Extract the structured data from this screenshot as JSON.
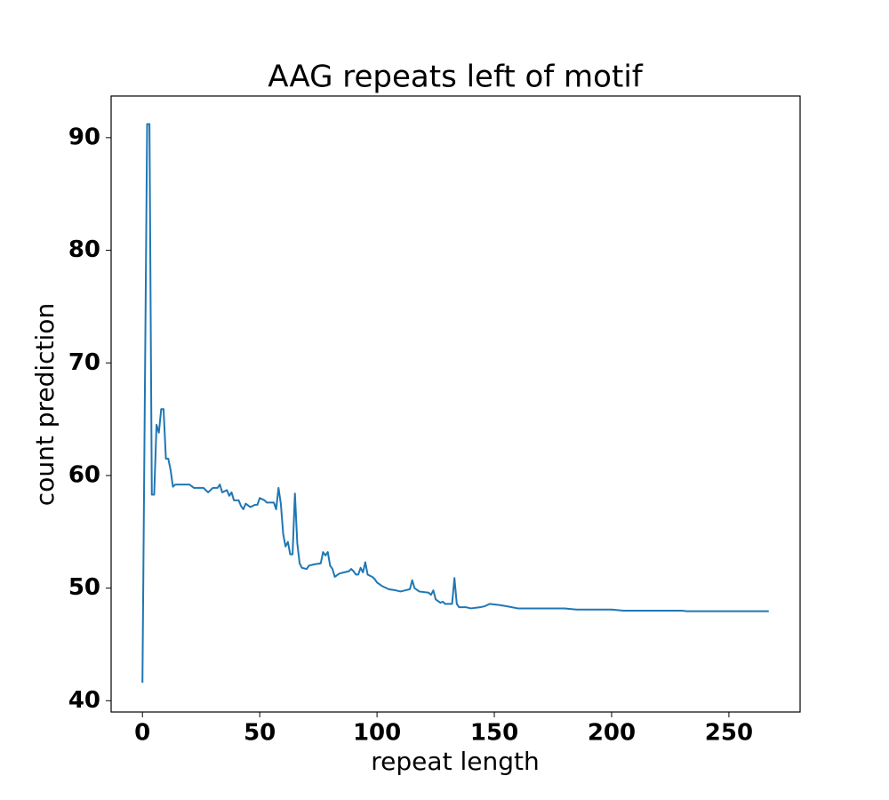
{
  "chart_data": {
    "type": "line",
    "title": "AAG repeats left of motif",
    "x_label": "repeat length",
    "y_label": "count prediction",
    "x": [
      0,
      2,
      3,
      4,
      5,
      6,
      7,
      8,
      9,
      10,
      11,
      12,
      13,
      14,
      20,
      22,
      26,
      28,
      30,
      32,
      33,
      34,
      36,
      37,
      38,
      39,
      41,
      42,
      43,
      44,
      46,
      48,
      49,
      50,
      52,
      53,
      56,
      57,
      58,
      59,
      60,
      61,
      62,
      63,
      64,
      65,
      66,
      67,
      68,
      70,
      71,
      73,
      76,
      77,
      78,
      79,
      80,
      81,
      82,
      84,
      86,
      88,
      89,
      90,
      91,
      92,
      93,
      94,
      95,
      96,
      98,
      99,
      100,
      102,
      105,
      108,
      110,
      112,
      114,
      115,
      116,
      118,
      122,
      123,
      124,
      125,
      127,
      128,
      129,
      132,
      133,
      134,
      135,
      138,
      140,
      144,
      146,
      148,
      152,
      155,
      160,
      165,
      170,
      180,
      185,
      190,
      200,
      205,
      220,
      230,
      232,
      267
    ],
    "series": [
      {
        "name": "count prediction",
        "color": "#1f77b4",
        "values": [
          41.6,
          91.2,
          91.2,
          58.3,
          58.3,
          64.5,
          63.8,
          65.9,
          65.9,
          61.5,
          61.5,
          60.5,
          59.0,
          59.2,
          59.2,
          58.9,
          58.9,
          58.5,
          58.9,
          58.9,
          59.2,
          58.5,
          58.7,
          58.2,
          58.5,
          57.8,
          57.8,
          57.3,
          57.0,
          57.5,
          57.2,
          57.4,
          57.4,
          58.0,
          57.8,
          57.6,
          57.6,
          57.0,
          58.9,
          57.5,
          54.8,
          53.7,
          54.1,
          53.0,
          53.0,
          58.4,
          54.0,
          52.2,
          51.8,
          51.7,
          52.0,
          52.1,
          52.2,
          53.2,
          52.9,
          53.2,
          52.0,
          51.7,
          51.0,
          51.3,
          51.4,
          51.5,
          51.7,
          51.5,
          51.2,
          51.2,
          51.8,
          51.4,
          52.3,
          51.2,
          51.0,
          50.8,
          50.5,
          50.2,
          49.9,
          49.8,
          49.7,
          49.8,
          49.9,
          50.7,
          50.0,
          49.7,
          49.6,
          49.4,
          49.8,
          49.0,
          48.7,
          48.8,
          48.6,
          48.6,
          50.9,
          48.6,
          48.3,
          48.3,
          48.2,
          48.3,
          48.4,
          48.6,
          48.5,
          48.4,
          48.2,
          48.2,
          48.2,
          48.2,
          48.1,
          48.1,
          48.1,
          48.0,
          48.0,
          48.0,
          47.95,
          47.95
        ]
      }
    ],
    "xlim": [
      -13.35,
      280.35
    ],
    "ylim": [
      39.0,
      93.7
    ],
    "xticks": [
      0,
      50,
      100,
      150,
      200,
      250
    ],
    "yticks": [
      40,
      50,
      60,
      70,
      80,
      90
    ],
    "grid": false
  }
}
